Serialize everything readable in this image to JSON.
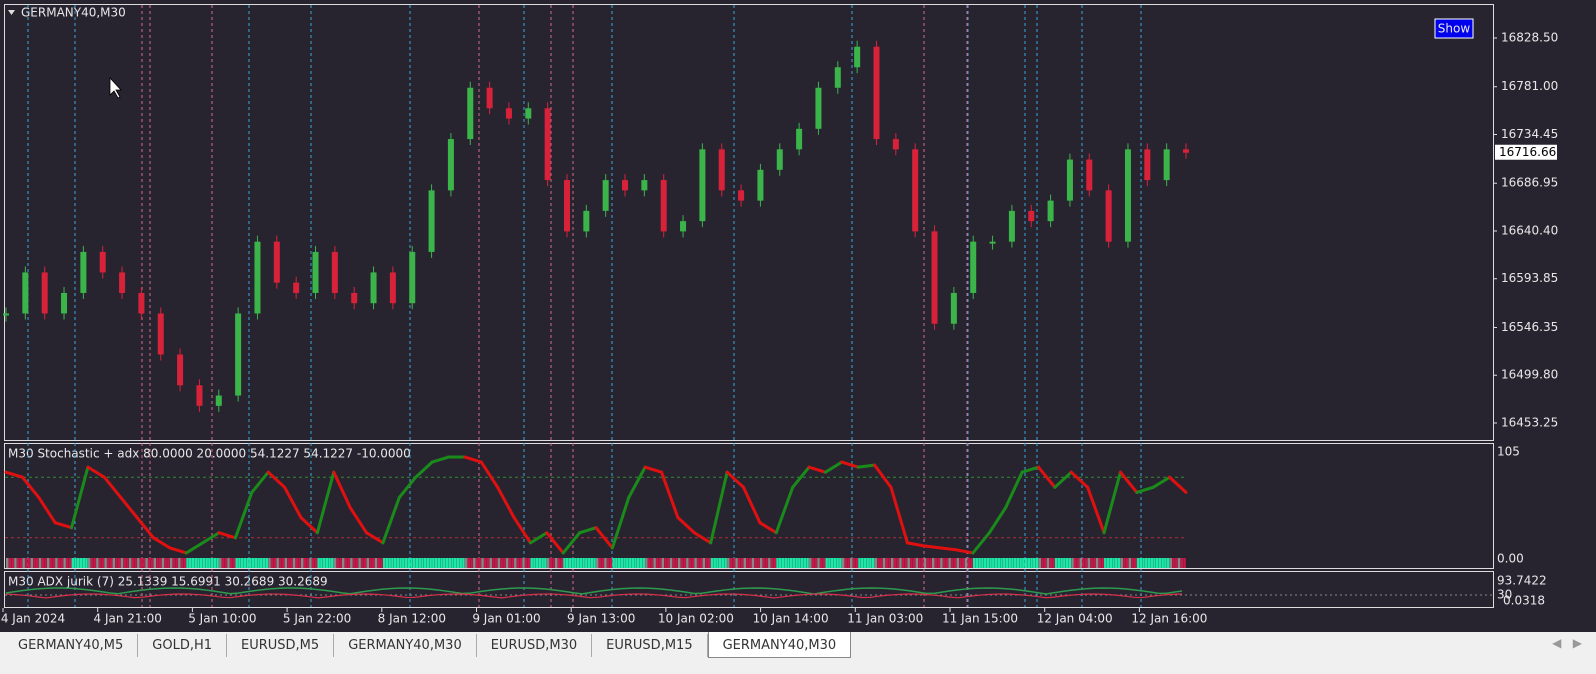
{
  "window": {
    "symbol_label": "GERMANY40,M30",
    "show_button": "Show"
  },
  "price_axis": {
    "ticks": [
      {
        "value": 16828.5,
        "label": "16828.50"
      },
      {
        "value": 16781.0,
        "label": "16781.00"
      },
      {
        "value": 16734.45,
        "label": "16734.45"
      },
      {
        "value": 16686.95,
        "label": "16686.95"
      },
      {
        "value": 16640.4,
        "label": "16640.40"
      },
      {
        "value": 16593.85,
        "label": "16593.85"
      },
      {
        "value": 16546.35,
        "label": "16546.35"
      },
      {
        "value": 16499.8,
        "label": "16499.80"
      },
      {
        "value": 16453.25,
        "label": "16453.25"
      }
    ],
    "current": {
      "value": 16716.66,
      "label": "16716.66"
    }
  },
  "price": {
    "closes": [
      16560,
      16600,
      16560,
      16580,
      16620,
      16600,
      16580,
      16560,
      16520,
      16490,
      16470,
      16480,
      16560,
      16630,
      16590,
      16580,
      16620,
      16580,
      16570,
      16600,
      16570,
      16620,
      16680,
      16730,
      16780,
      16760,
      16750,
      16760,
      16690,
      16640,
      16660,
      16690,
      16680,
      16690,
      16640,
      16650,
      16720,
      16680,
      16670,
      16700,
      16720,
      16740,
      16780,
      16800,
      16820,
      16730,
      16720,
      16640,
      16550,
      16580,
      16630,
      16630,
      16660,
      16650,
      16670,
      16710,
      16680,
      16630,
      16720,
      16690,
      16720,
      16716.66
    ]
  },
  "stochastic": {
    "label": "M30 Stochastic + adx 80.0000 20.0000 54.1227 54.1227 -10.0000",
    "axis_top": "105",
    "axis_bottom": "0.00",
    "values": [
      85,
      80,
      60,
      35,
      30,
      90,
      80,
      60,
      40,
      20,
      10,
      5,
      15,
      25,
      20,
      65,
      85,
      70,
      40,
      25,
      85,
      50,
      25,
      15,
      60,
      80,
      95,
      100,
      100,
      95,
      70,
      40,
      15,
      25,
      5,
      25,
      30,
      10,
      60,
      90,
      85,
      40,
      25,
      15,
      85,
      70,
      35,
      25,
      70,
      90,
      85,
      95,
      90,
      92,
      70,
      15,
      12,
      10,
      8,
      5,
      25,
      50,
      85,
      90,
      70,
      85,
      70,
      25,
      85,
      65,
      70,
      80,
      65
    ]
  },
  "adx": {
    "label": "M30  ADX jurik (7) 25.1339 15.6991 30.2689 30.2689",
    "axis_top": "93.7422",
    "axis_mid": "30",
    "axis_bottom": "0.0318"
  },
  "time_axis": [
    "4 Jan 2024",
    "4 Jan 21:00",
    "5 Jan 10:00",
    "5 Jan 22:00",
    "8 Jan 12:00",
    "9 Jan 01:00",
    "9 Jan 13:00",
    "10 Jan 02:00",
    "10 Jan 14:00",
    "11 Jan 03:00",
    "11 Jan 15:00",
    "12 Jan 04:00",
    "12 Jan 16:00"
  ],
  "tabs": [
    "GERMANY40,M5",
    "GOLD,H1",
    "EURUSD,M5",
    "GERMANY40,M30",
    "EURUSD,M30",
    "EURUSD,M15",
    "GERMANY40,M30"
  ]
}
